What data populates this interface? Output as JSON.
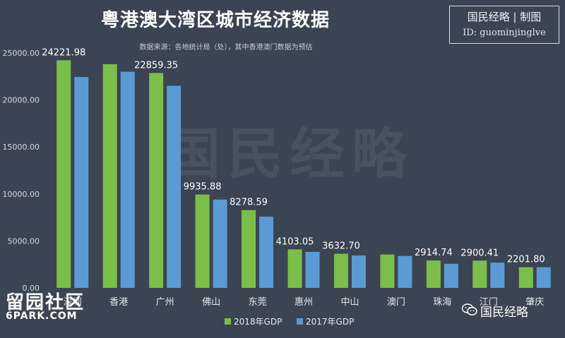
{
  "header": {
    "title": "粤港澳大湾区城市经济数据",
    "subtitle": "数据来源：各地统计局（处），其中香港澳门数据为预估"
  },
  "brand": {
    "name": "国民经略 | 制图",
    "id": "ID: guominjinglve"
  },
  "watermark": {
    "center_text": "国民经略",
    "site_logo": "留园社区",
    "site_url": "6PARK.COM",
    "wechat_label": "国民经略",
    "wechat_icon": "wechat-icon"
  },
  "colors": {
    "series_2018": "#7bbf4a",
    "series_2017": "#5b9bd5",
    "background": "#3b4452"
  },
  "chart_data": {
    "type": "bar",
    "title": "粤港澳大湾区城市经济数据",
    "subtitle": "数据来源：各地统计局（处），其中香港澳门数据为预估",
    "categories": [
      "深圳",
      "香港",
      "广州",
      "佛山",
      "东莞",
      "惠州",
      "中山",
      "澳门",
      "珠海",
      "江门",
      "肇庆"
    ],
    "series": [
      {
        "name": "2018年GDP",
        "values": [
          24221.98,
          23800,
          22859.35,
          9935.88,
          8278.59,
          4103.05,
          3632.7,
          3550,
          2914.74,
          2900.41,
          2201.8
        ],
        "labels": [
          "24221.98",
          "",
          "22859.35",
          "9935.88",
          "8278.59",
          "4103.05",
          "3632.70",
          "",
          "2914.74",
          "2900.41",
          "2201.80"
        ]
      },
      {
        "name": "2017年GDP",
        "values": [
          22438,
          23000,
          21503,
          9399,
          7582,
          3830,
          3450,
          3400,
          2565,
          2690,
          2200
        ]
      }
    ],
    "y_ticks": [
      "0.00",
      "5000.00",
      "10000.00",
      "15000.00",
      "20000.00",
      "25000.00"
    ],
    "ylim": [
      0,
      25000
    ],
    "grid": false,
    "legend_position": "bottom-center"
  }
}
